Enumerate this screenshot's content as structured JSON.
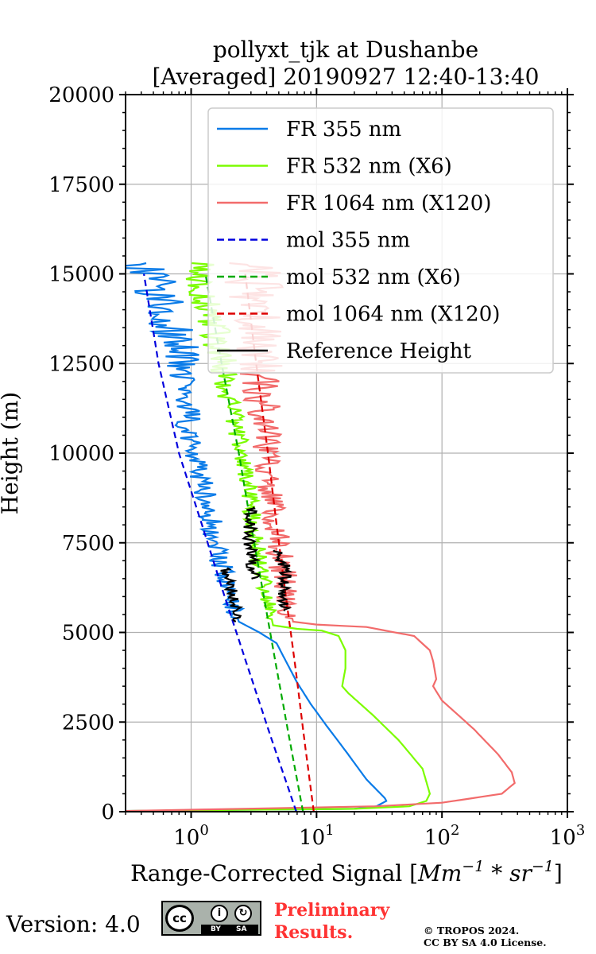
{
  "chart_data": {
    "type": "line",
    "title_line1": "pollyxt_tjk at Dushanbe",
    "title_line2": "[Averaged] 20190927 12:40-13:40",
    "xlabel": "Range-Corrected Signal [$Mm^{-1}*sr^{-1}$]",
    "xlabel_text": "Range-Corrected Signal [",
    "xlabel_math_base1": "Mm",
    "xlabel_math_sup1": "−1",
    "xlabel_math_mid": " * ",
    "xlabel_math_base2": "sr",
    "xlabel_math_sup2": "−1",
    "xlabel_close": "]",
    "ylabel": "Height (m)",
    "xscale": "log",
    "xlim": [
      0.3,
      1000
    ],
    "ylim": [
      0,
      20000
    ],
    "grid": true,
    "x_ticks": [
      {
        "value": 1,
        "base": "10",
        "exp": "0"
      },
      {
        "value": 10,
        "base": "10",
        "exp": "1"
      },
      {
        "value": 100,
        "base": "10",
        "exp": "2"
      },
      {
        "value": 1000,
        "base": "10",
        "exp": "3"
      }
    ],
    "y_ticks": [
      {
        "value": 0,
        "label": "0"
      },
      {
        "value": 2500,
        "label": "2500"
      },
      {
        "value": 5000,
        "label": "5000"
      },
      {
        "value": 7500,
        "label": "7500"
      },
      {
        "value": 10000,
        "label": "10000"
      },
      {
        "value": 12500,
        "label": "12500"
      },
      {
        "value": 15000,
        "label": "15000"
      },
      {
        "value": 17500,
        "label": "17500"
      },
      {
        "value": 20000,
        "label": "20000"
      }
    ],
    "legend_position": "top-right",
    "series": [
      {
        "name": "FR 355 nm",
        "color": "#0a7be8",
        "dash": "solid",
        "noise": 0.09,
        "seed": 11,
        "points": [
          [
            0.3,
            20
          ],
          [
            20,
            80
          ],
          [
            30,
            150
          ],
          [
            36,
            300
          ],
          [
            35,
            380
          ],
          [
            25,
            900
          ],
          [
            17,
            1700
          ],
          [
            12,
            2400
          ],
          [
            9,
            3000
          ],
          [
            7,
            3600
          ],
          [
            5.5,
            4300
          ],
          [
            4.8,
            4700
          ],
          [
            3.5,
            5000
          ],
          [
            2.4,
            5300
          ],
          [
            2.2,
            5700
          ],
          [
            2.0,
            6300
          ],
          [
            1.7,
            7000
          ],
          [
            1.5,
            7700
          ],
          [
            1.4,
            8400
          ],
          [
            1.2,
            9300
          ],
          [
            1.0,
            10200
          ],
          [
            0.95,
            11000
          ],
          [
            0.9,
            12000
          ],
          [
            0.8,
            13000
          ],
          [
            0.6,
            14000
          ],
          [
            0.5,
            15000
          ],
          [
            0.3,
            15300
          ]
        ]
      },
      {
        "name": "FR 532 nm (X6)",
        "color": "#7cfc00",
        "dash": "solid",
        "noise": 0.07,
        "seed": 23,
        "points": [
          [
            0.3,
            20
          ],
          [
            20,
            80
          ],
          [
            55,
            150
          ],
          [
            75,
            300
          ],
          [
            80,
            500
          ],
          [
            70,
            1200
          ],
          [
            45,
            2000
          ],
          [
            28,
            2700
          ],
          [
            18,
            3300
          ],
          [
            16,
            3500
          ],
          [
            17,
            4000
          ],
          [
            17,
            4500
          ],
          [
            15,
            4900
          ],
          [
            11,
            5050
          ],
          [
            7,
            5100
          ],
          [
            4.5,
            5200
          ],
          [
            4.2,
            5700
          ],
          [
            3.8,
            6500
          ],
          [
            3.3,
            7500
          ],
          [
            3.0,
            8500
          ],
          [
            2.7,
            9500
          ],
          [
            2.4,
            10500
          ],
          [
            2.0,
            11500
          ],
          [
            1.8,
            12500
          ],
          [
            1.5,
            13500
          ],
          [
            1.3,
            14500
          ],
          [
            1.2,
            15300
          ]
        ]
      },
      {
        "name": "FR 1064 nm (X120)",
        "color": "#f26b6b",
        "dash": "solid",
        "noise": 0.11,
        "seed": 37,
        "points": [
          [
            0.3,
            20
          ],
          [
            30,
            150
          ],
          [
            100,
            250
          ],
          [
            300,
            500
          ],
          [
            380,
            800
          ],
          [
            360,
            1100
          ],
          [
            280,
            1600
          ],
          [
            180,
            2300
          ],
          [
            100,
            3100
          ],
          [
            85,
            3500
          ],
          [
            90,
            3700
          ],
          [
            85,
            4200
          ],
          [
            80,
            4500
          ],
          [
            60,
            4900
          ],
          [
            25,
            5150
          ],
          [
            10,
            5220
          ],
          [
            6.5,
            5300
          ],
          [
            6,
            5800
          ],
          [
            5.5,
            6500
          ],
          [
            5,
            7300
          ],
          [
            4.5,
            8200
          ],
          [
            4.2,
            9100
          ],
          [
            4.0,
            10000
          ],
          [
            3.8,
            11000
          ],
          [
            3.6,
            12000
          ],
          [
            3.5,
            13000
          ],
          [
            3.3,
            14000
          ],
          [
            3.0,
            15300
          ]
        ]
      },
      {
        "name": "mol 355 nm",
        "color": "#0000dd",
        "dash": "dashed",
        "points": [
          [
            6.9,
            0
          ],
          [
            4.4,
            2000
          ],
          [
            2.85,
            4000
          ],
          [
            1.85,
            6000
          ],
          [
            1.22,
            8000
          ],
          [
            0.8,
            10000
          ],
          [
            0.55,
            12500
          ],
          [
            0.42,
            15000
          ]
        ]
      },
      {
        "name": "mol 532 nm (X6)",
        "color": "#00aa00",
        "dash": "dashed",
        "points": [
          [
            7.8,
            0
          ],
          [
            6.1,
            2000
          ],
          [
            4.8,
            4000
          ],
          [
            3.8,
            6000
          ],
          [
            3.0,
            8000
          ],
          [
            2.4,
            10000
          ],
          [
            1.75,
            12500
          ],
          [
            1.3,
            15000
          ]
        ]
      },
      {
        "name": "mol 1064 nm (X120)",
        "color": "#dd0000",
        "dash": "dashed",
        "points": [
          [
            9.5,
            0
          ],
          [
            8.0,
            2000
          ],
          [
            6.8,
            4000
          ],
          [
            5.7,
            6000
          ],
          [
            4.8,
            8000
          ],
          [
            4.1,
            10000
          ],
          [
            3.3,
            12500
          ],
          [
            2.7,
            15000
          ]
        ]
      },
      {
        "name": "Reference Height",
        "color": "#000000",
        "dash": "solid",
        "noise": 0.05,
        "seed": 53,
        "segments": [
          [
            [
              2.4,
              5300
            ],
            [
              2.3,
              5700
            ],
            [
              2.1,
              6200
            ],
            [
              1.9,
              6800
            ]
          ],
          [
            [
              3.2,
              6500
            ],
            [
              2.9,
              7500
            ],
            [
              3.0,
              8500
            ]
          ],
          [
            [
              5.8,
              5600
            ],
            [
              5.4,
              6200
            ],
            [
              5.8,
              6700
            ],
            [
              5.0,
              7300
            ]
          ]
        ]
      }
    ]
  },
  "footer": {
    "version": "Version: 4.0",
    "cc_main": "cc",
    "cc_by": "BY",
    "cc_sa": "SA",
    "preliminary_line1": "Preliminary",
    "preliminary_line2": "Results.",
    "copyright_line1": "© TROPOS 2024.",
    "copyright_line2": "CC BY SA 4.0 License."
  }
}
